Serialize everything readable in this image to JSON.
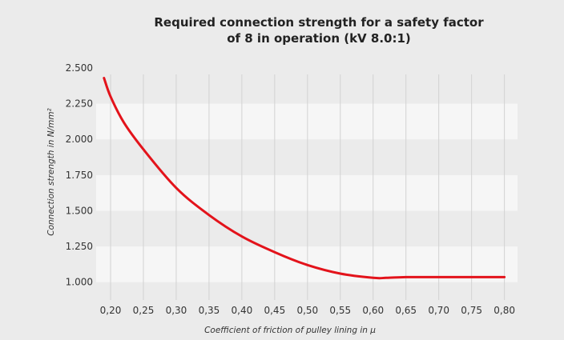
{
  "chart_data": {
    "type": "line",
    "title_lines": [
      "Required connection strength for a safety factor",
      "of 8 in operation (kV 8.0:1)"
    ],
    "xlabel": "Coefficient of friction of pulley lining in μ",
    "ylabel": "Connection strength in N/mm²",
    "x_ticks": [
      0.2,
      0.25,
      0.3,
      0.35,
      0.4,
      0.45,
      0.5,
      0.55,
      0.6,
      0.65,
      0.7,
      0.75,
      0.8
    ],
    "x_tick_labels": [
      "0,20",
      "0,25",
      "0,30",
      "0,35",
      "0,40",
      "0,45",
      "0,50",
      "0,55",
      "0,60",
      "0,65",
      "0,70",
      "0,75",
      "0,80"
    ],
    "y_ticks": [
      1.0,
      1.25,
      1.5,
      1.75,
      2.0,
      2.25,
      2.5
    ],
    "y_tick_labels": [
      "1.000",
      "1.250",
      "1.500",
      "1.750",
      "2.000",
      "2.250",
      "2.500"
    ],
    "xlim": [
      0.178,
      0.82
    ],
    "ylim": [
      0.875,
      2.5
    ],
    "grid": "horizontal bands, vertical lines",
    "series": [
      {
        "color": "#e3131b",
        "x": [
          0.19,
          0.2,
          0.22,
          0.25,
          0.3,
          0.35,
          0.4,
          0.45,
          0.5,
          0.55,
          0.6,
          0.62,
          0.65,
          0.7,
          0.75,
          0.8
        ],
        "y": [
          2.43,
          2.3,
          2.12,
          1.93,
          1.66,
          1.47,
          1.32,
          1.21,
          1.12,
          1.06,
          1.03,
          1.03,
          1.035,
          1.035,
          1.035,
          1.035
        ]
      }
    ],
    "colors": {
      "band": "#f6f6f6",
      "background": "#ebebeb",
      "vgrid": "#d2d2d2"
    }
  }
}
